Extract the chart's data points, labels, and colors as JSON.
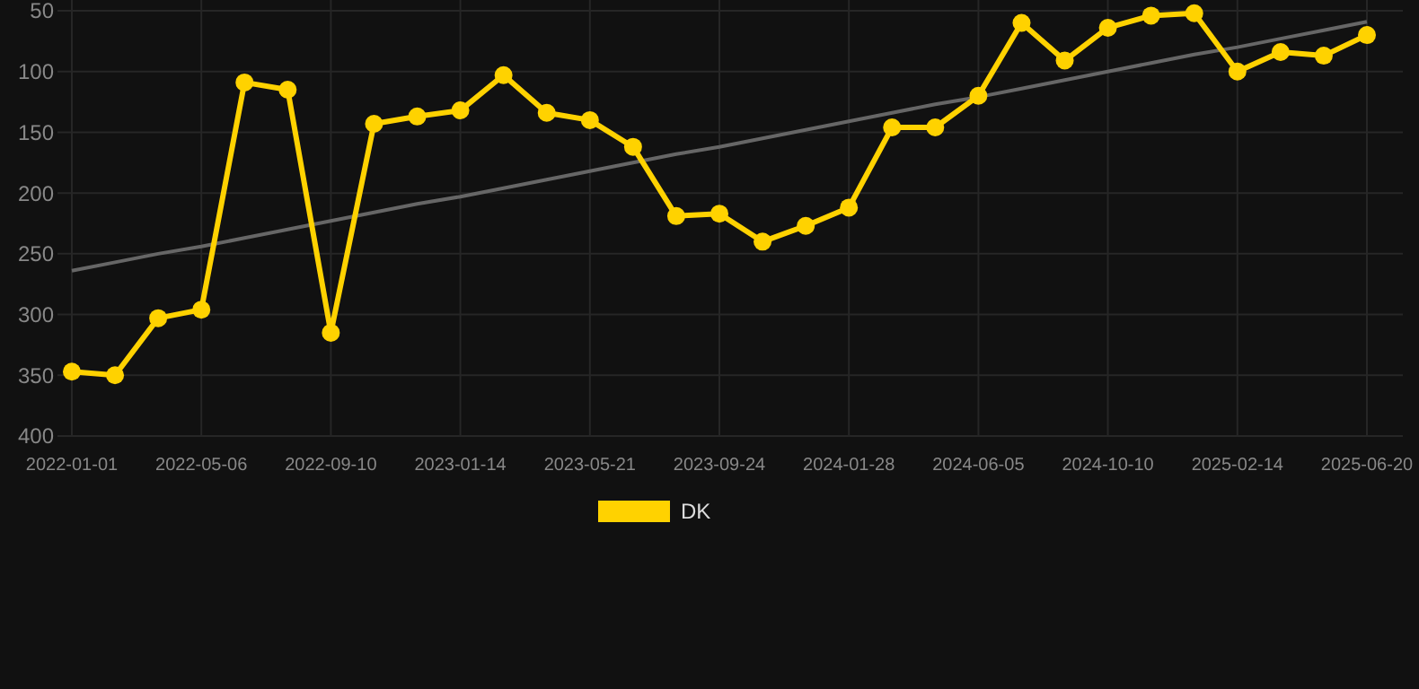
{
  "chart_data": {
    "type": "line",
    "categories": [
      "2022-01-01",
      null,
      null,
      "2022-05-06",
      null,
      null,
      "2022-09-10",
      null,
      null,
      "2023-01-14",
      null,
      null,
      "2023-05-21",
      null,
      null,
      "2023-09-24",
      null,
      null,
      "2024-01-28",
      null,
      null,
      "2024-06-05",
      null,
      null,
      "2024-10-10",
      null,
      null,
      "2025-02-14",
      null,
      null,
      "2025-06-20"
    ],
    "series": [
      {
        "name": "DK",
        "color": "#ffd200",
        "marker": "circle",
        "values": [
          347,
          350,
          303,
          296,
          109,
          115,
          315,
          143,
          137,
          132,
          103,
          134,
          140,
          162,
          219,
          217,
          240,
          227,
          212,
          146,
          146,
          120,
          60,
          91,
          64,
          54,
          52,
          100,
          84,
          87,
          70
        ]
      },
      {
        "color": "#666666",
        "marker": "none",
        "values": [
          264,
          257,
          250,
          244,
          237,
          230,
          223,
          216,
          209,
          203,
          196,
          189,
          182,
          175,
          168,
          162,
          155,
          148,
          141,
          134,
          127,
          121,
          114,
          107,
          100,
          93,
          86,
          80,
          73,
          66,
          59
        ]
      }
    ],
    "ylim": [
      400,
      50
    ],
    "yticks": [
      50,
      100,
      150,
      200,
      250,
      300,
      350,
      400
    ],
    "grid": true,
    "legend": "bottom"
  }
}
